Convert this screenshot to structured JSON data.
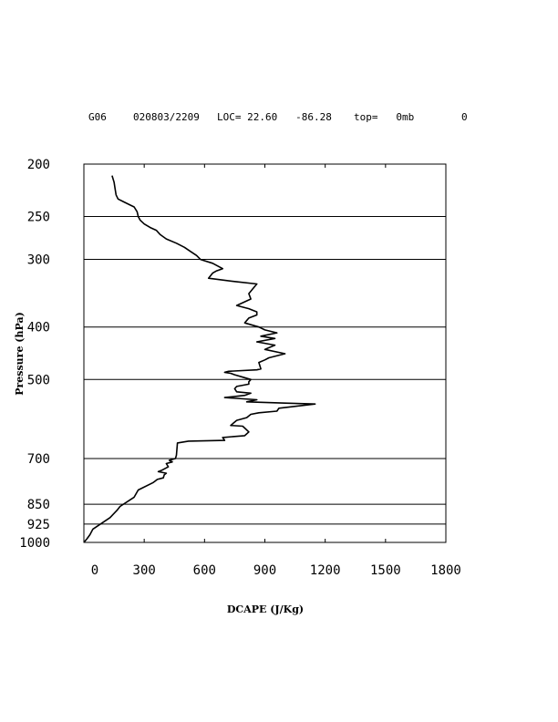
{
  "header": {
    "station": "G06",
    "datetime": "020803/2209",
    "loc": "LOC= 22.60   -86.28",
    "top": "top=   0mb",
    "flag": "0"
  },
  "chart_data": {
    "type": "line",
    "xlabel": "DCAPE (J/Kg)",
    "ylabel": "Pressure (hPa)",
    "xlim": [
      0,
      1800
    ],
    "ylim": [
      1000,
      200
    ],
    "y_scale": "log-pressure",
    "x_ticks": [
      0,
      300,
      600,
      900,
      1200,
      1500,
      1800
    ],
    "x_tick_labels": [
      "0",
      "300",
      "600",
      "900",
      "1200",
      "1500",
      "1800"
    ],
    "y_ticks": [
      200,
      250,
      300,
      400,
      500,
      700,
      850,
      925,
      1000
    ],
    "y_tick_labels": [
      "200",
      "250",
      "300",
      "400",
      "500",
      "700",
      "850",
      "925",
      "1000"
    ],
    "gridlines_y": [
      250,
      300,
      400,
      500,
      700,
      850,
      925
    ],
    "line_color": "#000000",
    "series": [
      {
        "x": [
          0,
          15,
          30,
          45,
          130,
          165,
          180,
          250,
          270,
          345,
          355,
          365,
          395,
          400,
          410,
          370,
          390,
          420,
          410,
          440,
          425,
          455,
          460,
          465,
          520,
          700,
          690,
          800,
          820,
          790,
          730,
          760,
          810,
          830,
          870,
          960,
          970,
          1150,
          1000,
          810,
          860,
          700,
          800,
          830,
          760,
          750,
          760,
          820,
          820,
          830,
          790,
          750,
          730,
          700,
          720,
          860,
          880,
          870,
          900,
          920,
          1000,
          900,
          950,
          860,
          950,
          880,
          960,
          900,
          870,
          840,
          800,
          820,
          860,
          860,
          820,
          760,
          830,
          820,
          840,
          860,
          760,
          620,
          640,
          660,
          690,
          640,
          580,
          560,
          530,
          500,
          460,
          410,
          380,
          360,
          330,
          300,
          280,
          270,
          265,
          250,
          230,
          200,
          170,
          160,
          155,
          150,
          140
        ],
        "y": [
          1000,
          985,
          968,
          945,
          900,
          872,
          858,
          825,
          800,
          775,
          770,
          765,
          760,
          750,
          745,
          740,
          735,
          725,
          715,
          710,
          705,
          700,
          690,
          655,
          650,
          648,
          640,
          635,
          625,
          610,
          608,
          595,
          588,
          580,
          576,
          572,
          565,
          555,
          553,
          550,
          545,
          540,
          535,
          530,
          527,
          520,
          515,
          510,
          505,
          500,
          495,
          490,
          487,
          485,
          483,
          480,
          478,
          465,
          460,
          456,
          448,
          440,
          432,
          426,
          420,
          416,
          410,
          405,
          400,
          397,
          393,
          385,
          380,
          375,
          370,
          365,
          355,
          347,
          340,
          333,
          330,
          325,
          318,
          315,
          312,
          305,
          300,
          295,
          290,
          285,
          280,
          275,
          270,
          265,
          262,
          258,
          254,
          250,
          245,
          240,
          238,
          235,
          232,
          228,
          222,
          216,
          210
        ]
      }
    ]
  }
}
